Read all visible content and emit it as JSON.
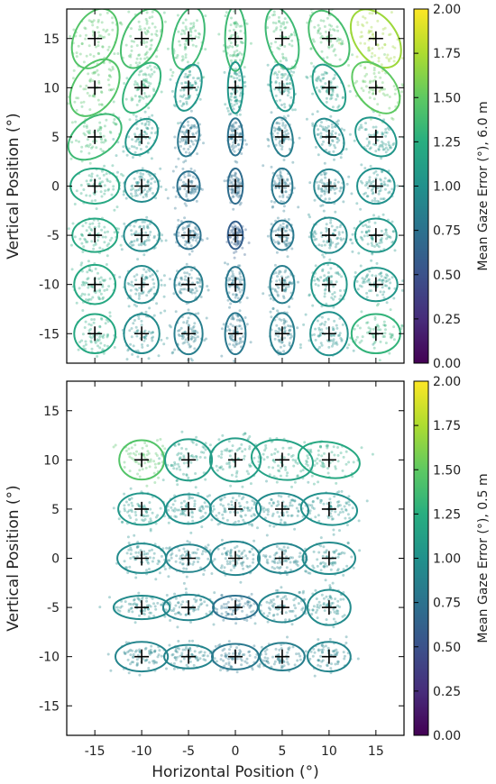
{
  "chart_data": [
    {
      "type": "scatter",
      "title": "",
      "xlabel": "",
      "ylabel": "Vertical Position (°)",
      "xlim": [
        -18,
        18
      ],
      "ylim": [
        -18,
        18
      ],
      "xticks": [
        "-15",
        "-10",
        "-5",
        "0",
        "5",
        "10",
        "15"
      ],
      "yticks": [
        "-15",
        "-10",
        "-5",
        "0",
        "5",
        "10",
        "15"
      ],
      "colorbar": {
        "label": "Mean Gaze Error (°), 6.0 m",
        "range": [
          0,
          2
        ],
        "ticks": [
          "0.00",
          "0.25",
          "0.50",
          "0.75",
          "1.00",
          "1.25",
          "1.50",
          "1.75",
          "2.00"
        ],
        "colormap": "viridis"
      },
      "targets": [
        {
          "x": -15,
          "y": 15,
          "error": 1.45,
          "rx": 2.2,
          "ry": 3.2,
          "angle": -25
        },
        {
          "x": -10,
          "y": 15,
          "error": 1.4,
          "rx": 1.9,
          "ry": 3.2,
          "angle": -25
        },
        {
          "x": -5,
          "y": 15,
          "error": 1.35,
          "rx": 1.6,
          "ry": 3.2,
          "angle": -12
        },
        {
          "x": 0,
          "y": 15,
          "error": 1.35,
          "rx": 1.1,
          "ry": 3.3,
          "angle": 0
        },
        {
          "x": 5,
          "y": 15,
          "error": 1.35,
          "rx": 1.6,
          "ry": 3.2,
          "angle": 15
        },
        {
          "x": 10,
          "y": 15,
          "error": 1.4,
          "rx": 1.9,
          "ry": 3.0,
          "angle": 25
        },
        {
          "x": 15,
          "y": 15,
          "error": 1.7,
          "rx": 2.2,
          "ry": 3.3,
          "angle": 35
        },
        {
          "x": -15,
          "y": 10,
          "error": 1.45,
          "rx": 2.2,
          "ry": 3.2,
          "angle": -35
        },
        {
          "x": -10,
          "y": 10,
          "error": 1.3,
          "rx": 1.6,
          "ry": 2.8,
          "angle": -30
        },
        {
          "x": -5,
          "y": 10,
          "error": 1.05,
          "rx": 1.3,
          "ry": 2.4,
          "angle": -15
        },
        {
          "x": 0,
          "y": 10,
          "error": 1.05,
          "rx": 0.8,
          "ry": 2.6,
          "angle": 0
        },
        {
          "x": 5,
          "y": 10,
          "error": 1.05,
          "rx": 1.2,
          "ry": 2.4,
          "angle": 10
        },
        {
          "x": 10,
          "y": 10,
          "error": 1.1,
          "rx": 1.5,
          "ry": 2.5,
          "angle": 25
        },
        {
          "x": 15,
          "y": 10,
          "error": 1.5,
          "rx": 2.0,
          "ry": 3.0,
          "angle": 40
        },
        {
          "x": -15,
          "y": 5,
          "error": 1.35,
          "rx": 2.0,
          "ry": 3.0,
          "angle": -55
        },
        {
          "x": -10,
          "y": 5,
          "error": 1.05,
          "rx": 1.5,
          "ry": 2.0,
          "angle": -35
        },
        {
          "x": -5,
          "y": 5,
          "error": 0.8,
          "rx": 1.1,
          "ry": 2.0,
          "angle": -10
        },
        {
          "x": 0,
          "y": 5,
          "error": 0.75,
          "rx": 0.8,
          "ry": 1.9,
          "angle": 0
        },
        {
          "x": 5,
          "y": 5,
          "error": 0.85,
          "rx": 1.1,
          "ry": 2.0,
          "angle": 10
        },
        {
          "x": 10,
          "y": 5,
          "error": 0.95,
          "rx": 1.4,
          "ry": 2.0,
          "angle": 30
        },
        {
          "x": 15,
          "y": 5,
          "error": 1.05,
          "rx": 1.8,
          "ry": 2.3,
          "angle": 50
        },
        {
          "x": -15,
          "y": 0,
          "error": 1.2,
          "rx": 2.6,
          "ry": 1.8,
          "angle": 0
        },
        {
          "x": -10,
          "y": 0,
          "error": 0.95,
          "rx": 1.8,
          "ry": 1.6,
          "angle": 0
        },
        {
          "x": -5,
          "y": 0,
          "error": 0.75,
          "rx": 1.2,
          "ry": 1.5,
          "angle": 0
        },
        {
          "x": 0,
          "y": 0,
          "error": 0.7,
          "rx": 0.8,
          "ry": 1.8,
          "angle": 0
        },
        {
          "x": 5,
          "y": 0,
          "error": 0.8,
          "rx": 1.1,
          "ry": 1.8,
          "angle": 0
        },
        {
          "x": 10,
          "y": 0,
          "error": 0.9,
          "rx": 1.6,
          "ry": 1.7,
          "angle": 0
        },
        {
          "x": 15,
          "y": 0,
          "error": 1.0,
          "rx": 2.0,
          "ry": 1.8,
          "angle": 0
        },
        {
          "x": -15,
          "y": -5,
          "error": 1.2,
          "rx": 2.4,
          "ry": 1.7,
          "angle": 0
        },
        {
          "x": -10,
          "y": -5,
          "error": 0.95,
          "rx": 1.9,
          "ry": 1.6,
          "angle": 0
        },
        {
          "x": -5,
          "y": -5,
          "error": 0.75,
          "rx": 1.3,
          "ry": 1.4,
          "angle": 0
        },
        {
          "x": 0,
          "y": -5,
          "error": 0.6,
          "rx": 0.8,
          "ry": 1.4,
          "angle": 0
        },
        {
          "x": 5,
          "y": -5,
          "error": 0.8,
          "rx": 1.2,
          "ry": 1.5,
          "angle": 0
        },
        {
          "x": 10,
          "y": -5,
          "error": 0.95,
          "rx": 1.9,
          "ry": 1.8,
          "angle": 0
        },
        {
          "x": 15,
          "y": -5,
          "error": 1.05,
          "rx": 2.2,
          "ry": 1.7,
          "angle": 0
        },
        {
          "x": -15,
          "y": -10,
          "error": 1.2,
          "rx": 2.2,
          "ry": 2.0,
          "angle": 0
        },
        {
          "x": -10,
          "y": -10,
          "error": 0.95,
          "rx": 1.8,
          "ry": 1.9,
          "angle": 0
        },
        {
          "x": -5,
          "y": -10,
          "error": 0.85,
          "rx": 1.5,
          "ry": 1.8,
          "angle": 0
        },
        {
          "x": 0,
          "y": -10,
          "error": 0.8,
          "rx": 1.0,
          "ry": 1.8,
          "angle": 0
        },
        {
          "x": 5,
          "y": -10,
          "error": 0.85,
          "rx": 1.3,
          "ry": 1.9,
          "angle": 0
        },
        {
          "x": 10,
          "y": -10,
          "error": 1.05,
          "rx": 1.9,
          "ry": 2.2,
          "angle": 0
        },
        {
          "x": 15,
          "y": -10,
          "error": 1.05,
          "rx": 2.3,
          "ry": 1.7,
          "angle": 0
        },
        {
          "x": -15,
          "y": -15,
          "error": 1.2,
          "rx": 2.2,
          "ry": 2.0,
          "angle": 0
        },
        {
          "x": -10,
          "y": -15,
          "error": 0.95,
          "rx": 1.9,
          "ry": 2.0,
          "angle": 0
        },
        {
          "x": -5,
          "y": -15,
          "error": 0.85,
          "rx": 1.5,
          "ry": 2.1,
          "angle": 0
        },
        {
          "x": 0,
          "y": -15,
          "error": 0.8,
          "rx": 1.1,
          "ry": 2.1,
          "angle": 0
        },
        {
          "x": 5,
          "y": -15,
          "error": 0.85,
          "rx": 1.3,
          "ry": 2.1,
          "angle": 0
        },
        {
          "x": 10,
          "y": -15,
          "error": 1.0,
          "rx": 2.0,
          "ry": 2.2,
          "angle": 0
        },
        {
          "x": 15,
          "y": -15,
          "error": 1.3,
          "rx": 2.6,
          "ry": 2.0,
          "angle": 0
        }
      ]
    },
    {
      "type": "scatter",
      "title": "",
      "xlabel": "Horizontal Position (°)",
      "ylabel": "Vertical Position (°)",
      "xlim": [
        -18,
        18
      ],
      "ylim": [
        -18,
        18
      ],
      "xticks": [
        "-15",
        "-10",
        "-5",
        "0",
        "5",
        "10",
        "15"
      ],
      "yticks": [
        "-15",
        "-10",
        "-5",
        "0",
        "5",
        "10",
        "15"
      ],
      "colorbar": {
        "label": "Mean Gaze Error (°), 0.5 m",
        "range": [
          0,
          2
        ],
        "ticks": [
          "0.00",
          "0.25",
          "0.50",
          "0.75",
          "1.00",
          "1.25",
          "1.50",
          "1.75",
          "2.00"
        ],
        "colormap": "viridis"
      },
      "targets": [
        {
          "x": -10,
          "y": 10,
          "error": 1.45,
          "rx": 2.4,
          "ry": 2.0,
          "angle": 0
        },
        {
          "x": -5,
          "y": 10,
          "error": 1.1,
          "rx": 2.5,
          "ry": 2.1,
          "angle": 0
        },
        {
          "x": 0,
          "y": 10,
          "error": 1.1,
          "rx": 2.7,
          "ry": 2.2,
          "angle": 0
        },
        {
          "x": 5,
          "y": 10,
          "error": 1.15,
          "rx": 3.3,
          "ry": 2.0,
          "angle": -10
        },
        {
          "x": 10,
          "y": 10,
          "error": 1.2,
          "rx": 3.3,
          "ry": 1.8,
          "angle": -10
        },
        {
          "x": -10,
          "y": 5,
          "error": 1.05,
          "rx": 2.5,
          "ry": 1.6,
          "angle": 0
        },
        {
          "x": -5,
          "y": 5,
          "error": 1.0,
          "rx": 2.4,
          "ry": 1.5,
          "angle": 0
        },
        {
          "x": 0,
          "y": 5,
          "error": 0.95,
          "rx": 2.7,
          "ry": 1.6,
          "angle": 0
        },
        {
          "x": 5,
          "y": 5,
          "error": 0.95,
          "rx": 2.8,
          "ry": 1.6,
          "angle": -5
        },
        {
          "x": 10,
          "y": 5,
          "error": 1.0,
          "rx": 3.0,
          "ry": 1.6,
          "angle": -5
        },
        {
          "x": -10,
          "y": 0,
          "error": 0.95,
          "rx": 2.6,
          "ry": 1.5,
          "angle": 0
        },
        {
          "x": -5,
          "y": 0,
          "error": 0.9,
          "rx": 2.4,
          "ry": 1.4,
          "angle": 0
        },
        {
          "x": 0,
          "y": 0,
          "error": 0.9,
          "rx": 2.6,
          "ry": 1.7,
          "angle": 0
        },
        {
          "x": 5,
          "y": 0,
          "error": 0.9,
          "rx": 2.6,
          "ry": 1.5,
          "angle": 0
        },
        {
          "x": 10,
          "y": 0,
          "error": 0.95,
          "rx": 2.8,
          "ry": 1.6,
          "angle": 0
        },
        {
          "x": -10,
          "y": -5,
          "error": 0.95,
          "rx": 3.0,
          "ry": 1.2,
          "angle": 0
        },
        {
          "x": -5,
          "y": -5,
          "error": 0.9,
          "rx": 2.7,
          "ry": 1.3,
          "angle": 0
        },
        {
          "x": 0,
          "y": -5,
          "error": 0.75,
          "rx": 2.4,
          "ry": 1.2,
          "angle": 0
        },
        {
          "x": 5,
          "y": -5,
          "error": 0.9,
          "rx": 2.5,
          "ry": 1.5,
          "angle": 0
        },
        {
          "x": 10,
          "y": -5,
          "error": 0.95,
          "rx": 2.3,
          "ry": 1.8,
          "angle": 0
        },
        {
          "x": -10,
          "y": -10,
          "error": 0.9,
          "rx": 2.8,
          "ry": 1.5,
          "angle": 0
        },
        {
          "x": -5,
          "y": -10,
          "error": 0.9,
          "rx": 2.6,
          "ry": 1.2,
          "angle": 0
        },
        {
          "x": 0,
          "y": -10,
          "error": 0.8,
          "rx": 2.5,
          "ry": 1.3,
          "angle": 0
        },
        {
          "x": 5,
          "y": -10,
          "error": 0.85,
          "rx": 2.4,
          "ry": 1.4,
          "angle": 0
        },
        {
          "x": 10,
          "y": -10,
          "error": 0.9,
          "rx": 2.3,
          "ry": 1.5,
          "angle": 0
        }
      ]
    }
  ]
}
